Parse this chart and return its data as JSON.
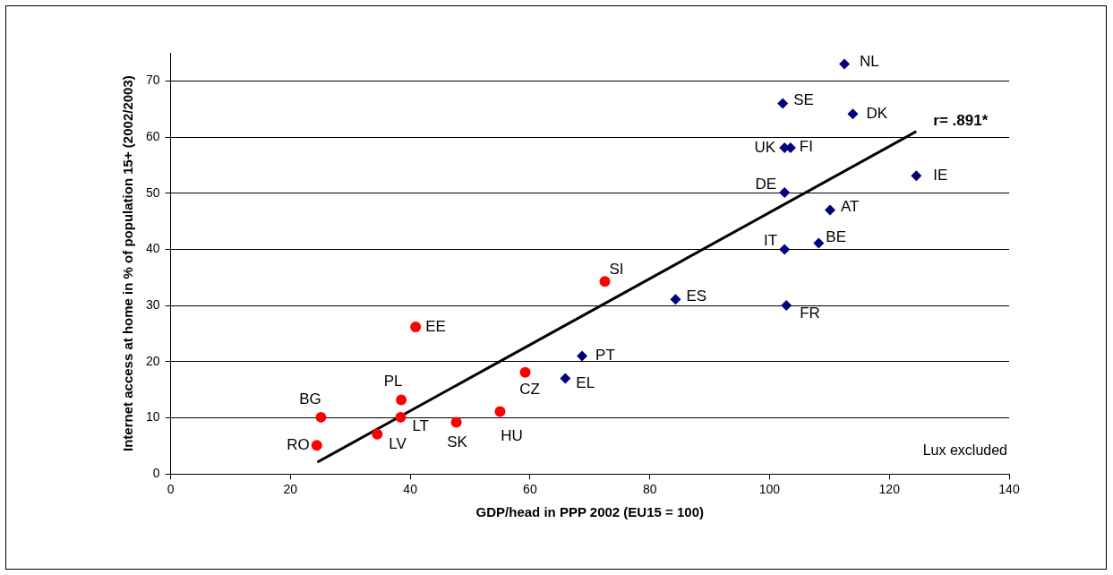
{
  "chart_data": {
    "type": "scatter",
    "xlabel": "GDP/head in PPP 2002 (EU15 = 100)",
    "ylabel": "Internet access at home in % of population 15+ (2002/2003)",
    "xlim": [
      0,
      140
    ],
    "xticks": [
      0,
      20,
      40,
      60,
      80,
      100,
      120,
      140
    ],
    "ylim": [
      0,
      75
    ],
    "yticks": [
      0,
      10,
      20,
      30,
      40,
      50,
      60,
      70
    ],
    "grid": "y",
    "legend": false,
    "series": [
      {
        "color": "#ff0000",
        "marker": "circle",
        "x": [
          24.4,
          25.1,
          38.5,
          38.4,
          34.5,
          40.9,
          47.7,
          55.0,
          59.2,
          72.5
        ],
        "values": [
          5.1,
          10.1,
          13.2,
          10.1,
          7.1,
          26.2,
          9.2,
          11.1,
          18.1,
          34.3
        ]
      },
      {
        "color": "#000080",
        "marker": "diamond",
        "x": [
          65.9,
          68.7,
          84.3,
          102.8,
          102.5,
          108.2,
          110.1,
          102.5,
          124.5,
          102.5,
          103.5,
          113.9,
          102.2,
          112.5
        ],
        "values": [
          17.0,
          21.0,
          31.1,
          30.0,
          40.0,
          41.1,
          47.0,
          50.1,
          53.1,
          58.1,
          58.1,
          64.1,
          66.0,
          73.0
        ]
      },
      {
        "type": "line",
        "color": "#000000",
        "marker": "none",
        "line_style": "solid",
        "x": [
          24.5,
          124.5
        ],
        "values": [
          2.1,
          61.0
        ]
      }
    ],
    "annotations": [
      {
        "text": "RO",
        "x": 24.4,
        "y": 5.1
      },
      {
        "text": "BG",
        "x": 25.1,
        "y": 10.1
      },
      {
        "text": "PL",
        "x": 38.5,
        "y": 13.2
      },
      {
        "text": "LT",
        "x": 38.4,
        "y": 10.1
      },
      {
        "text": "LV",
        "x": 34.5,
        "y": 7.1
      },
      {
        "text": "EE",
        "x": 40.9,
        "y": 26.2
      },
      {
        "text": "SK",
        "x": 47.7,
        "y": 9.2
      },
      {
        "text": "HU",
        "x": 55.0,
        "y": 11.1
      },
      {
        "text": "CZ",
        "x": 59.2,
        "y": 18.1
      },
      {
        "text": "SI",
        "x": 72.5,
        "y": 34.3
      },
      {
        "text": "EL",
        "x": 65.9,
        "y": 17.0
      },
      {
        "text": "PT",
        "x": 68.7,
        "y": 21.0
      },
      {
        "text": "ES",
        "x": 84.3,
        "y": 31.1
      },
      {
        "text": "FR",
        "x": 102.8,
        "y": 30.0
      },
      {
        "text": "IT",
        "x": 102.5,
        "y": 40.0
      },
      {
        "text": "BE",
        "x": 108.2,
        "y": 41.1
      },
      {
        "text": "AT",
        "x": 110.1,
        "y": 47.0
      },
      {
        "text": "DE",
        "x": 102.5,
        "y": 50.1
      },
      {
        "text": "IE",
        "x": 124.5,
        "y": 53.1
      },
      {
        "text": "UK",
        "x": 102.5,
        "y": 58.1
      },
      {
        "text": "FI",
        "x": 103.5,
        "y": 58.1
      },
      {
        "text": "DK",
        "x": 113.9,
        "y": 64.1
      },
      {
        "text": "SE",
        "x": 102.2,
        "y": 66.0
      },
      {
        "text": "NL",
        "x": 112.5,
        "y": 73.0
      },
      {
        "text": "r= .891*",
        "x": 124.5,
        "y": 61.0
      },
      "Lux excluded"
    ]
  }
}
